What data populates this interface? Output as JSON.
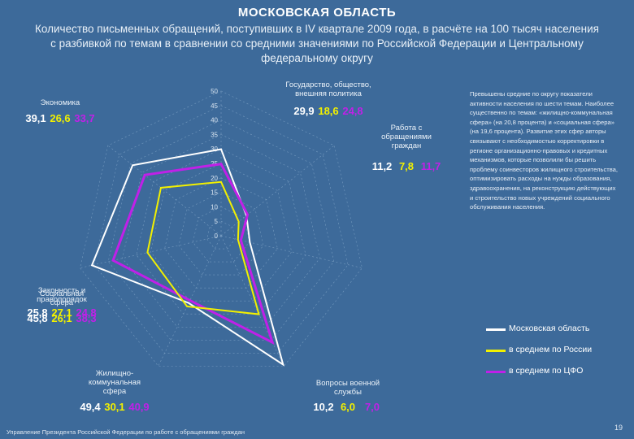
{
  "header": {
    "title": "МОСКОВСКАЯ ОБЛАСТЬ",
    "subtitle": "Количество письменных обращений, поступивших в IV квартале 2009 года, в расчёте на 100 тысяч населения с разбивкой по темам в сравнении со средними значениями по Российской Федерации и Центральному федеральному округу"
  },
  "note": "Превышены средние по округу показатели активности населения по шести темам. Наиболее существенно по темам: «жилищно-коммунальная сфера» (на 20,8 процента) и «социальная сфера» (на 19,6 процента). Развитие этих сфер авторы связывают с необходимостью корректировки в регионе организационно-правовых и кредитных механизмов, которые позволили бы решить проблему соинвесторов жилищного строительства, оптимизировать расходы на нужды образования, здравоохранения, на реконструкцию действующих и строительство новых учреждений социального обслуживания населения.",
  "footer": "Управление Президента Российской Федерации по работе с обращениями граждан",
  "page_number": "19",
  "colors": {
    "background": "#3d6a9a",
    "moscow_region": "#ffffff",
    "russia": "#f2f000",
    "cfd": "#c020e8"
  },
  "chart_data": {
    "type": "radar",
    "radial_ticks": [
      "0",
      "5",
      "10",
      "15",
      "20",
      "25",
      "30",
      "35",
      "40",
      "45",
      "50"
    ],
    "rlim": [
      0,
      50
    ],
    "categories": [
      "Государство, общество, внешняя политика",
      "Работа с обращениями граждан",
      "Вопросы военной службы",
      "Жилищно-коммунальная сфера",
      "Законность и правопорядок",
      "Социальная сфера",
      "Экономика"
    ],
    "category_labels": [
      [
        "Государство, общество,",
        "внешняя политика"
      ],
      [
        "Работа с",
        "обращениями",
        "граждан"
      ],
      [
        "Вопросы военной",
        "службы"
      ],
      [
        "Жилищно-",
        "коммунальная",
        "сфера"
      ],
      [
        "Законность и",
        "правопорядок"
      ],
      [
        "Социальная",
        "сфера"
      ],
      [
        "Экономика"
      ]
    ],
    "value_labels": [
      [
        "29,9",
        "18,6",
        "24,8"
      ],
      [
        "11,2",
        "7,8",
        "11,7"
      ],
      [
        "10,2",
        "6,0",
        "7,0"
      ],
      [
        "49,4",
        "30,1",
        "40,9"
      ],
      [
        "25,8",
        "27,1",
        "24,8"
      ],
      [
        "45,8",
        "26,1",
        "38,3"
      ],
      [
        "39,1",
        "26,6",
        "33,7"
      ]
    ],
    "series": [
      {
        "name": "Московская область",
        "values": [
          29.9,
          11.2,
          10.2,
          49.4,
          25.8,
          45.8,
          39.1
        ]
      },
      {
        "name": "в среднем по России",
        "values": [
          18.6,
          7.8,
          6.0,
          30.1,
          27.1,
          26.1,
          26.6
        ]
      },
      {
        "name": "в среднем по ЦФО",
        "values": [
          24.8,
          11.7,
          7.0,
          40.9,
          24.8,
          38.3,
          33.7
        ]
      }
    ],
    "legend": "right"
  }
}
